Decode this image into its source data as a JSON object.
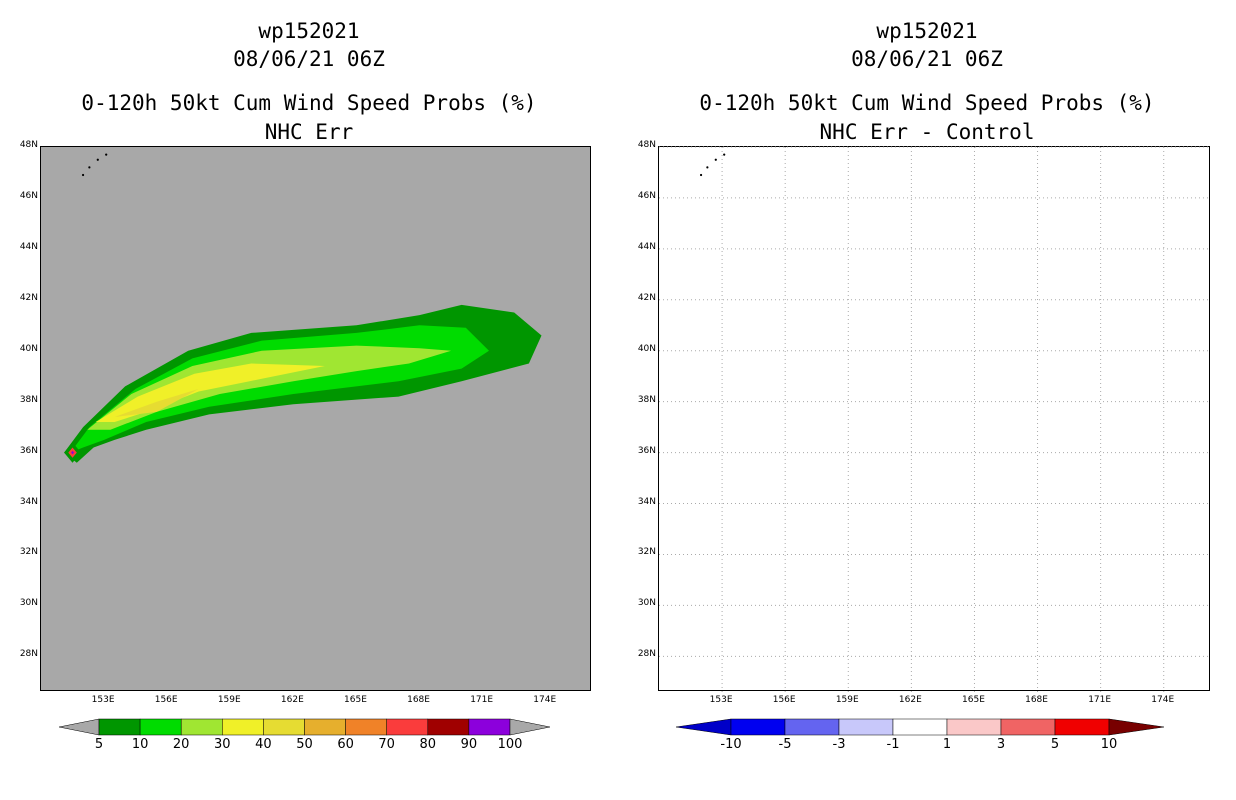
{
  "panels": [
    {
      "id": "left",
      "title_line1": "wp152021",
      "title_line2": "08/06/21 06Z",
      "title_line3": "0-120h 50kt Cum Wind Speed Probs (%)",
      "title_line4": "NHC Err"
    },
    {
      "id": "right",
      "title_line1": "wp152021",
      "title_line2": "08/06/21 06Z",
      "title_line3": "0-120h 50kt Cum Wind Speed Probs (%)",
      "title_line4": "NHC Err - Control"
    }
  ],
  "chart_data": [
    {
      "type": "heatmap",
      "title": "0-120h 50kt Cum Wind Speed Probs (%) NHC Err",
      "storm": "wp152021",
      "time": "08/06/21 06Z",
      "lat_ticks": [
        "48N",
        "46N",
        "44N",
        "42N",
        "40N",
        "38N",
        "36N",
        "34N",
        "32N",
        "30N",
        "28N"
      ],
      "lon_ticks": [
        "153E",
        "156E",
        "159E",
        "162E",
        "165E",
        "168E",
        "171E",
        "174E"
      ],
      "lat_range": [
        26.6,
        48.0
      ],
      "lon_range": [
        150.0,
        176.2
      ],
      "grid": false,
      "background_color": "#a8a8a8",
      "colorbar": {
        "labels": [
          "5",
          "10",
          "20",
          "30",
          "40",
          "50",
          "60",
          "70",
          "80",
          "90",
          "100"
        ],
        "colors": [
          "#009600",
          "#00dc00",
          "#a0e632",
          "#f0f028",
          "#e6dc32",
          "#e6af2d",
          "#f08228",
          "#fa3c3c",
          "#a00000",
          "#8c00dc"
        ]
      },
      "contours": [
        {
          "level": "5-10",
          "color": "#009600",
          "points": [
            [
              151.1,
              36.0
            ],
            [
              152.0,
              37.0
            ],
            [
              154.0,
              38.6
            ],
            [
              157.0,
              40.0
            ],
            [
              160.0,
              40.7
            ],
            [
              165.0,
              41.0
            ],
            [
              168.0,
              41.4
            ],
            [
              170.0,
              41.8
            ],
            [
              172.5,
              41.5
            ],
            [
              173.8,
              40.6
            ],
            [
              173.2,
              39.5
            ],
            [
              170.0,
              38.8
            ],
            [
              167.0,
              38.2
            ],
            [
              162.0,
              37.9
            ],
            [
              158.0,
              37.5
            ],
            [
              155.0,
              36.9
            ],
            [
              153.5,
              36.5
            ],
            [
              152.5,
              36.2
            ],
            [
              151.7,
              35.6
            ]
          ]
        },
        {
          "level": "10-20",
          "color": "#00dc00",
          "points": [
            [
              151.4,
              36.0
            ],
            [
              152.3,
              37.0
            ],
            [
              154.5,
              38.5
            ],
            [
              157.2,
              39.7
            ],
            [
              160.5,
              40.4
            ],
            [
              165.0,
              40.7
            ],
            [
              168.0,
              41.0
            ],
            [
              170.2,
              40.9
            ],
            [
              171.3,
              40.0
            ],
            [
              170.0,
              39.3
            ],
            [
              167.0,
              38.8
            ],
            [
              162.0,
              38.3
            ],
            [
              158.0,
              37.8
            ],
            [
              155.0,
              37.2
            ],
            [
              153.0,
              36.5
            ],
            [
              152.0,
              36.2
            ]
          ]
        },
        {
          "level": "20-30",
          "color": "#a0e632",
          "points": [
            [
              152.2,
              36.9
            ],
            [
              154.3,
              38.3
            ],
            [
              157.2,
              39.4
            ],
            [
              160.5,
              40.0
            ],
            [
              165.0,
              40.2
            ],
            [
              168.0,
              40.1
            ],
            [
              169.5,
              40.0
            ],
            [
              167.5,
              39.5
            ],
            [
              165.0,
              39.2
            ],
            [
              162.0,
              38.8
            ],
            [
              158.5,
              38.3
            ],
            [
              155.5,
              37.6
            ],
            [
              153.3,
              36.9
            ]
          ]
        },
        {
          "level": "30-40",
          "color": "#f0f028",
          "points": [
            [
              152.6,
              37.2
            ],
            [
              154.6,
              38.2
            ],
            [
              157.3,
              39.1
            ],
            [
              160.0,
              39.5
            ],
            [
              163.5,
              39.4
            ],
            [
              160.5,
              38.9
            ],
            [
              157.5,
              38.4
            ],
            [
              155.0,
              37.6
            ],
            [
              153.5,
              37.2
            ]
          ]
        },
        {
          "level": "40-50",
          "color": "#e6dc32",
          "points": [
            [
              153.5,
              37.4
            ],
            [
              155.5,
              38.0
            ],
            [
              157.5,
              38.5
            ],
            [
              155.5,
              37.6
            ]
          ]
        },
        {
          "level": "marker-outer",
          "color": "#009600",
          "points": [
            [
              151.1,
              36.0
            ],
            [
              151.5,
              36.4
            ],
            [
              151.9,
              36.0
            ],
            [
              151.5,
              35.6
            ]
          ]
        },
        {
          "level": "marker-inner",
          "color": "#fa3c3c",
          "points": [
            [
              151.3,
              36.0
            ],
            [
              151.5,
              36.2
            ],
            [
              151.7,
              36.0
            ],
            [
              151.5,
              35.8
            ]
          ]
        },
        {
          "level": "marker-core",
          "color": "#8c00dc",
          "points": [
            [
              151.43,
              36.0
            ],
            [
              151.5,
              36.07
            ],
            [
              151.57,
              36.0
            ],
            [
              151.5,
              35.93
            ]
          ]
        }
      ]
    },
    {
      "type": "heatmap",
      "title": "0-120h 50kt Cum Wind Speed Probs (%) NHC Err - Control",
      "storm": "wp152021",
      "time": "08/06/21 06Z",
      "lat_ticks": [
        "48N",
        "46N",
        "44N",
        "42N",
        "40N",
        "38N",
        "36N",
        "34N",
        "32N",
        "30N",
        "28N"
      ],
      "lon_ticks": [
        "153E",
        "156E",
        "159E",
        "162E",
        "165E",
        "168E",
        "171E",
        "174E"
      ],
      "lat_range": [
        26.6,
        48.0
      ],
      "lon_range": [
        150.0,
        176.2
      ],
      "grid": true,
      "background_color": "#ffffff",
      "colorbar": {
        "labels": [
          "-10",
          "-5",
          "-3",
          "-1",
          "1",
          "3",
          "5",
          "10"
        ],
        "colors": [
          "#0000c8",
          "#0000f0",
          "#6464f0",
          "#c8c8fa",
          "#ffffff",
          "#fac8c8",
          "#f06464",
          "#f00000",
          "#780000"
        ]
      },
      "contours": []
    }
  ]
}
